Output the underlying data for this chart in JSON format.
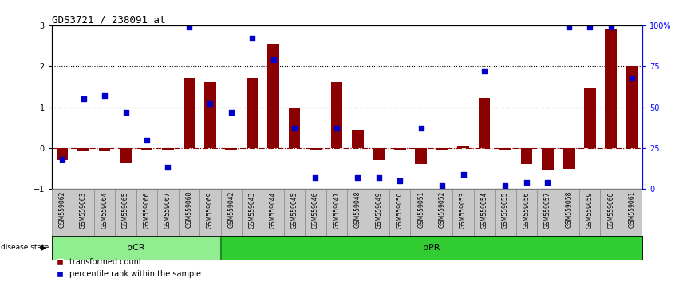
{
  "title": "GDS3721 / 238091_at",
  "categories": [
    "GSM559062",
    "GSM559063",
    "GSM559064",
    "GSM559065",
    "GSM559066",
    "GSM559067",
    "GSM559068",
    "GSM559069",
    "GSM559042",
    "GSM559043",
    "GSM559044",
    "GSM559045",
    "GSM559046",
    "GSM559047",
    "GSM559048",
    "GSM559049",
    "GSM559050",
    "GSM559051",
    "GSM559052",
    "GSM559053",
    "GSM559054",
    "GSM559055",
    "GSM559056",
    "GSM559057",
    "GSM559058",
    "GSM559059",
    "GSM559060",
    "GSM559061"
  ],
  "red_values": [
    -0.3,
    -0.07,
    -0.07,
    -0.35,
    -0.05,
    -0.05,
    1.72,
    1.62,
    -0.05,
    1.72,
    2.55,
    1.0,
    -0.05,
    1.62,
    0.45,
    -0.3,
    -0.05,
    -0.4,
    -0.05,
    0.05,
    1.22,
    -0.05,
    -0.4,
    -0.55,
    -0.5,
    1.45,
    2.9,
    2.0
  ],
  "blue_pct": [
    18,
    55,
    57,
    47,
    30,
    13,
    99,
    52,
    47,
    92,
    79,
    37,
    7,
    37,
    7,
    7,
    5,
    37,
    2,
    9,
    72,
    2,
    4,
    4,
    99,
    99,
    99,
    68
  ],
  "pCR_count": 8,
  "pPR_count": 20,
  "bar_color": "#8B0000",
  "square_color": "#0000CD",
  "zero_line_color": "#8B0000",
  "pCR_color": "#90EE90",
  "pPR_color": "#32CD32",
  "bg_color": "#FFFFFF",
  "ylim": [
    -1,
    3
  ],
  "right_yticks": [
    0,
    25,
    50,
    75,
    100
  ],
  "right_ytick_labels": [
    "0",
    "25",
    "50",
    "75",
    "100%"
  ]
}
